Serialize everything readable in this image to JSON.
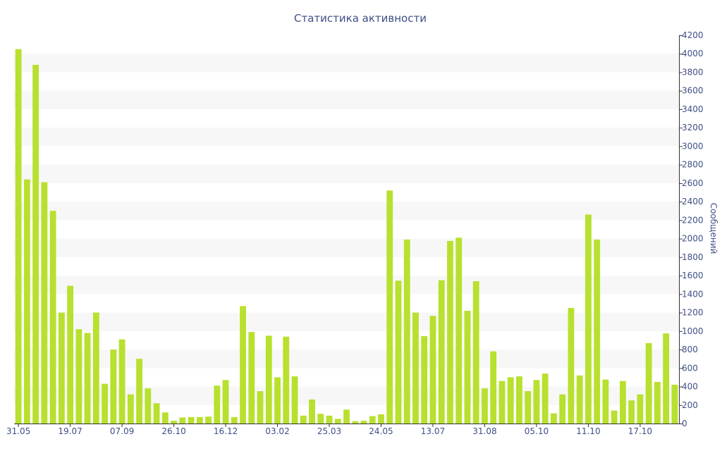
{
  "chart_data": {
    "type": "bar",
    "title": "Статистика активности",
    "xlabel": "",
    "ylabel": "Сообщений",
    "ylim": [
      0,
      4200
    ],
    "yticks": [
      0,
      200,
      400,
      600,
      800,
      1000,
      1200,
      1400,
      1600,
      1800,
      2000,
      2200,
      2400,
      2600,
      2800,
      3000,
      3200,
      3400,
      3600,
      3800,
      4000,
      4200
    ],
    "y_axis_position": "right",
    "grid": "alternating-bands",
    "legend": "none",
    "bar_color": "#b8e02e",
    "band_color": "#f7f7f7",
    "text_color": "#3e4f86",
    "axis_color": "#333333",
    "x_tick_labels": [
      {
        "index": 0,
        "label": "31.05"
      },
      {
        "index": 6,
        "label": "19.07"
      },
      {
        "index": 12,
        "label": "07.09"
      },
      {
        "index": 18,
        "label": "26.10"
      },
      {
        "index": 24,
        "label": "16.12"
      },
      {
        "index": 30,
        "label": "03.02"
      },
      {
        "index": 36,
        "label": "25.03"
      },
      {
        "index": 42,
        "label": "24.05"
      },
      {
        "index": 48,
        "label": "13.07"
      },
      {
        "index": 54,
        "label": "31.08"
      },
      {
        "index": 60,
        "label": "05.10"
      },
      {
        "index": 66,
        "label": "11.10"
      },
      {
        "index": 72,
        "label": "17.10"
      }
    ],
    "values": [
      4050,
      2640,
      3880,
      2610,
      2300,
      1200,
      1490,
      1020,
      980,
      1200,
      430,
      800,
      910,
      315,
      700,
      380,
      220,
      120,
      30,
      65,
      70,
      70,
      75,
      410,
      470,
      70,
      1270,
      990,
      350,
      950,
      500,
      940,
      510,
      85,
      260,
      105,
      85,
      50,
      150,
      25,
      30,
      80,
      100,
      2520,
      1545,
      1990,
      1200,
      945,
      1165,
      1550,
      1975,
      2010,
      1220,
      1540,
      380,
      780,
      460,
      500,
      510,
      350,
      470,
      540,
      110,
      315,
      1250,
      520,
      2260,
      1990,
      475,
      140,
      460,
      250,
      315,
      870,
      450,
      975,
      420
    ]
  }
}
